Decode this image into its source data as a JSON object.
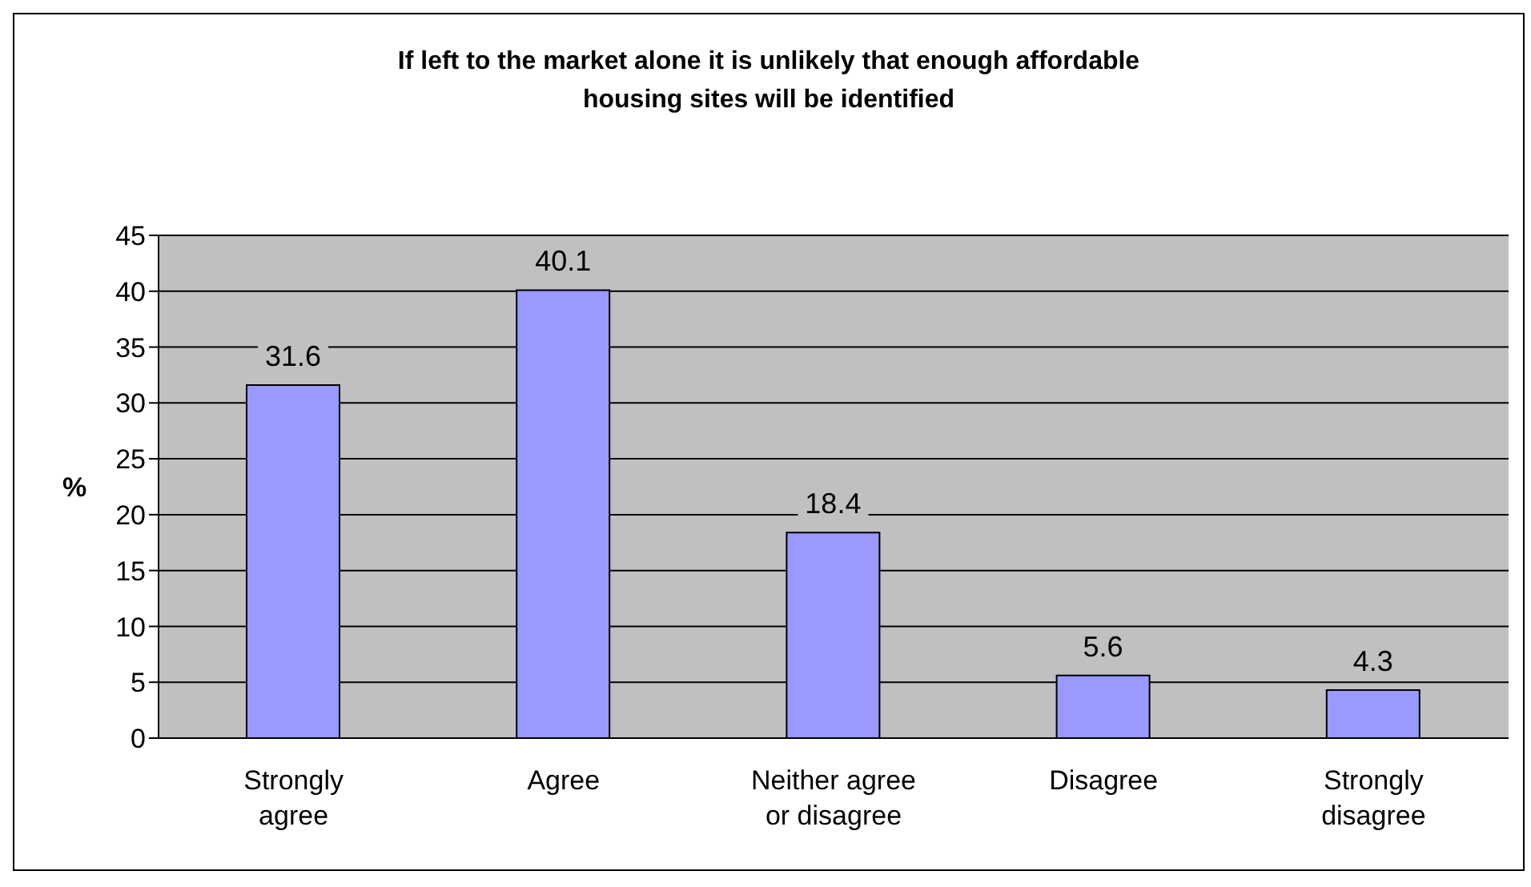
{
  "chart_data": {
    "type": "bar",
    "title": "If left to the market alone it is unlikely that enough affordable housing sites will be identified",
    "ylabel": "%",
    "categories": [
      "Strongly agree",
      "Agree",
      "Neither agree or disagree",
      "Disagree",
      "Strongly disagree"
    ],
    "values": [
      31.6,
      40.1,
      18.4,
      5.6,
      4.3
    ],
    "color": "#9999ff",
    "ylim": [
      0,
      45
    ],
    "yticks": [
      0,
      5,
      10,
      15,
      20,
      25,
      30,
      35,
      40,
      45
    ],
    "grid": "y",
    "data_labels": true
  }
}
